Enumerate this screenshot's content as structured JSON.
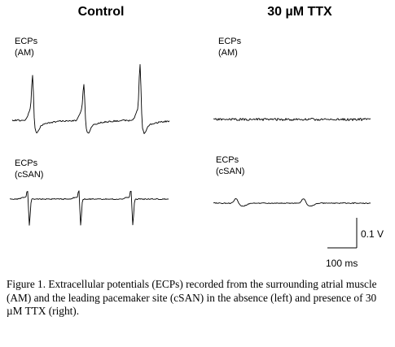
{
  "figure": {
    "columns": [
      {
        "title": "Control"
      },
      {
        "title": "30 µM TTX"
      }
    ],
    "traces": [
      {
        "label_line1": "ECPs",
        "label_line2": "(AM)"
      },
      {
        "label_line1": "ECPs",
        "label_line2": "(AM)"
      },
      {
        "label_line1": "ECPs",
        "label_line2": "(cSAN)"
      },
      {
        "label_line1": "ECPs",
        "label_line2": "(cSAN)"
      }
    ],
    "scale_bar": {
      "voltage_label": "0.1 V",
      "time_label": "100 ms"
    }
  },
  "caption": "Figure 1. Extracellular potentials (ECPs) recorded from the surrounding atrial muscle (AM) and the leading pacemaker site (cSAN) in the absence (left) and presence of 30 µM TTX (right)."
}
